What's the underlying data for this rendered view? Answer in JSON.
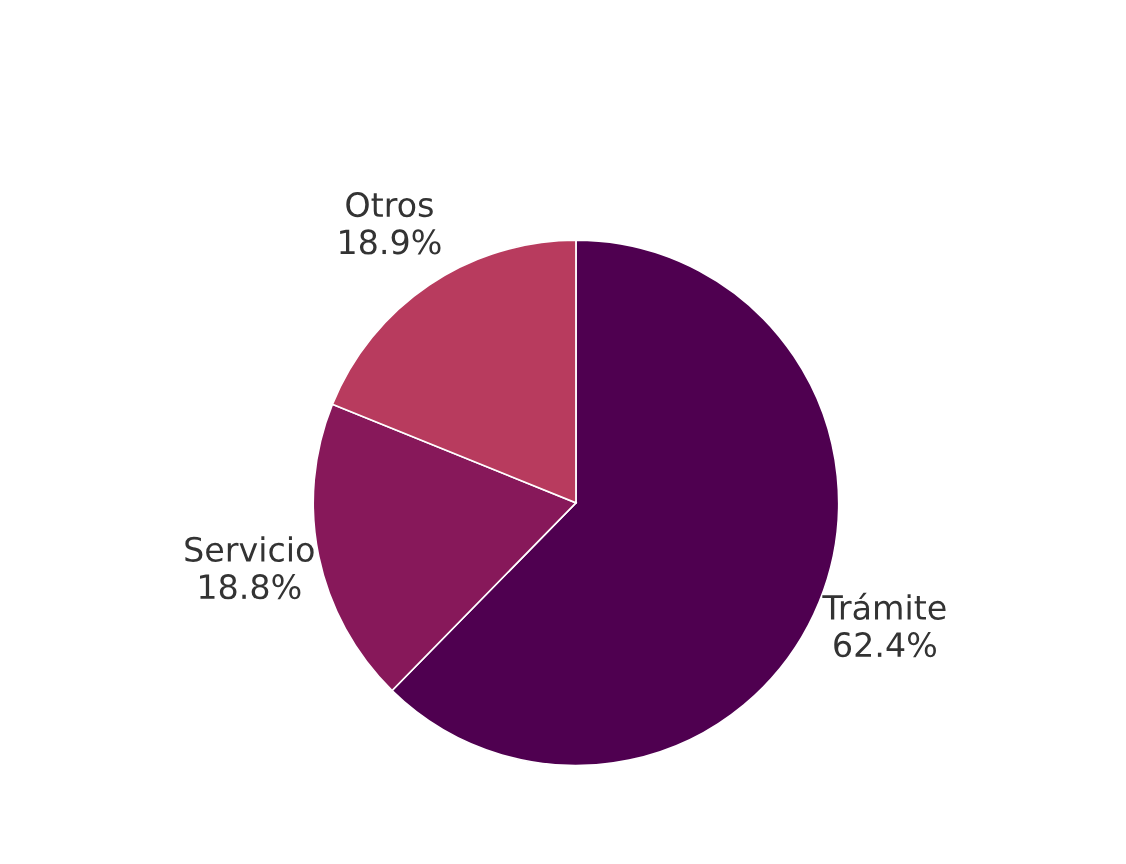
{
  "chart_data": {
    "type": "pie",
    "categories": [
      "Trámite",
      "Servicio",
      "Otros"
    ],
    "values": [
      62.4,
      18.8,
      18.9
    ],
    "value_labels": [
      "62.4%",
      "18.8%",
      "18.9%"
    ],
    "colors": [
      "#4f0050",
      "#87185a",
      "#b83b5e"
    ]
  }
}
